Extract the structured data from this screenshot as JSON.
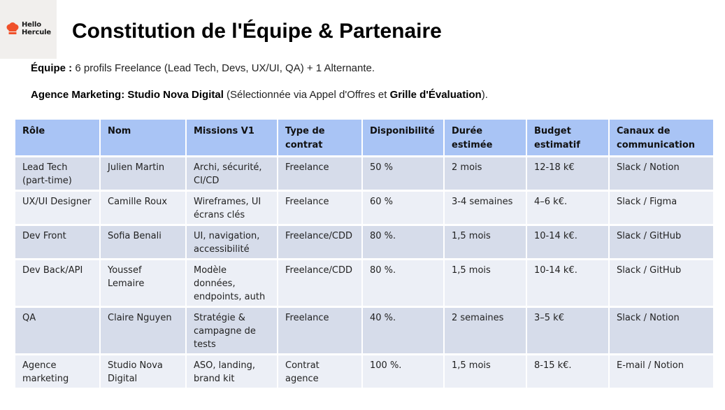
{
  "logo": {
    "line1": "Hello",
    "line2": "Hercule"
  },
  "title": "Constitution de l'Équipe & Partenaire",
  "team_line": {
    "label": "Équipe :",
    "text": " 6 profils Freelance (Lead Tech, Devs, UX/UI, QA) + 1 Alternante."
  },
  "agency_line": {
    "label": "Agence Marketing: Studio Nova Digital",
    "text_a": " (Sélectionnée via Appel d'Offres et ",
    "bold_b": "Grille d'Évaluation",
    "text_c": ")."
  },
  "table": {
    "headers": [
      "Rôle",
      "Nom",
      "Missions V1",
      "Type de contrat",
      "Disponibilité",
      "Durée estimée",
      "Budget estimatif",
      "Canaux de communication"
    ],
    "rows": [
      [
        "Lead Tech (part-time)",
        "Julien Martin",
        "Archi, sécurité, CI/CD",
        "Freelance",
        "50 %",
        "2 mois",
        "12-18 k€",
        "Slack / Notion"
      ],
      [
        "UX/UI Designer",
        "Camille Roux",
        "Wireframes, UI écrans clés",
        "Freelance",
        "60 %",
        "3-4 semaines",
        "4–6 k€.",
        "Slack / Figma"
      ],
      [
        "Dev Front",
        "Sofia Benali",
        "UI, navigation, accessibilité",
        "Freelance/CDD",
        "80 %.",
        "1,5 mois",
        "10-14 k€.",
        "Slack / GitHub"
      ],
      [
        "Dev Back/API",
        "Youssef Lemaire",
        "Modèle données, endpoints, auth",
        "Freelance/CDD",
        "80 %.",
        "1,5 mois",
        "10-14 k€.",
        "Slack / GitHub"
      ],
      [
        "QA",
        "Claire Nguyen",
        "Stratégie & campagne de tests",
        "Freelance",
        "40 %.",
        "2 semaines",
        "3–5 k€",
        "Slack / Notion"
      ],
      [
        "Agence marketing",
        "Studio Nova Digital",
        "ASO, landing, brand kit",
        "Contrat agence",
        "100 %.",
        "1,5 mois",
        "8-15 k€.",
        "E-mail / Notion"
      ]
    ]
  },
  "colors": {
    "header_bg": "#a9c4f5",
    "row_dark": "#d6dcea",
    "row_light": "#eceff6",
    "logo_orange": "#f0502a"
  }
}
